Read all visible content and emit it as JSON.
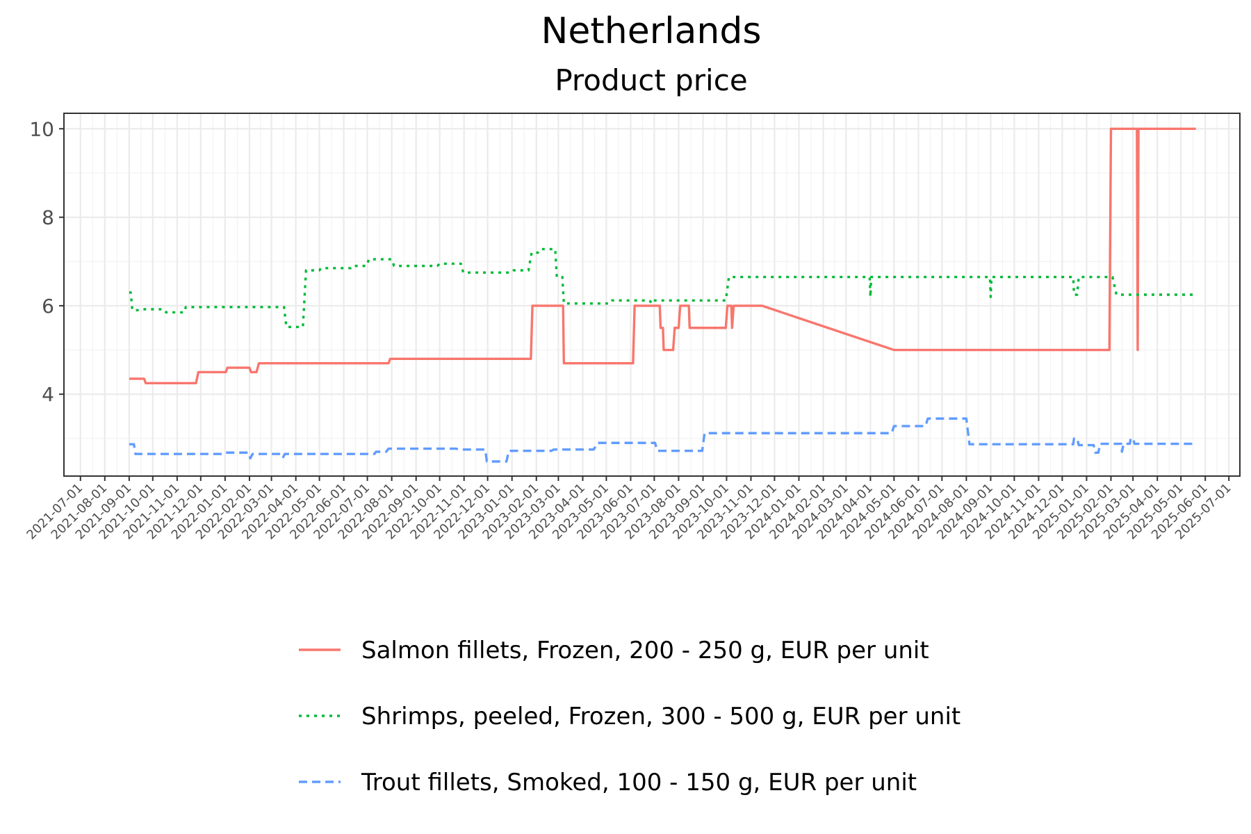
{
  "chart_data": {
    "type": "line",
    "title": "Netherlands",
    "subtitle": "Product price",
    "xlabel": "",
    "ylabel": "",
    "x_axis": "date",
    "xlim": [
      "2021-06-10",
      "2025-07-15"
    ],
    "ylim": [
      2.15,
      10.35
    ],
    "y_ticks": [
      4,
      6,
      8,
      10
    ],
    "y_tick_labels": [
      "4",
      "6",
      "8",
      "10"
    ],
    "x_ticks": [
      "2021-07-01",
      "2021-08-01",
      "2021-09-01",
      "2021-10-01",
      "2021-11-01",
      "2021-12-01",
      "2022-01-01",
      "2022-02-01",
      "2022-03-01",
      "2022-04-01",
      "2022-05-01",
      "2022-06-01",
      "2022-07-01",
      "2022-08-01",
      "2022-09-01",
      "2022-10-01",
      "2022-11-01",
      "2022-12-01",
      "2023-01-01",
      "2023-02-01",
      "2023-03-01",
      "2023-04-01",
      "2023-05-01",
      "2023-06-01",
      "2023-07-01",
      "2023-08-01",
      "2023-09-01",
      "2023-10-01",
      "2023-11-01",
      "2023-12-01",
      "2024-01-01",
      "2024-02-01",
      "2024-03-01",
      "2024-04-01",
      "2024-05-01",
      "2024-06-01",
      "2024-07-01",
      "2024-08-01",
      "2024-09-01",
      "2024-10-01",
      "2024-11-01",
      "2024-12-01",
      "2025-01-01",
      "2025-02-01",
      "2025-03-01",
      "2025-04-01",
      "2025-05-01",
      "2025-06-01",
      "2025-07-01"
    ],
    "grid": true,
    "legend_position": "bottom",
    "series": [
      {
        "name": "Salmon fillets, Frozen, 200 - 250 g, EUR per unit",
        "color": "#F8766D",
        "dash": "solid",
        "points": [
          [
            "2021-09-01",
            4.35
          ],
          [
            "2021-09-20",
            4.35
          ],
          [
            "2021-09-22",
            4.25
          ],
          [
            "2021-11-25",
            4.25
          ],
          [
            "2021-11-28",
            4.5
          ],
          [
            "2022-01-02",
            4.5
          ],
          [
            "2022-01-04",
            4.6
          ],
          [
            "2022-02-01",
            4.6
          ],
          [
            "2022-02-03",
            4.5
          ],
          [
            "2022-02-10",
            4.5
          ],
          [
            "2022-02-13",
            4.7
          ],
          [
            "2022-07-28",
            4.7
          ],
          [
            "2022-07-30",
            4.8
          ],
          [
            "2023-01-25",
            4.8
          ],
          [
            "2023-01-27",
            6.0
          ],
          [
            "2023-03-07",
            6.0
          ],
          [
            "2023-03-08",
            4.7
          ],
          [
            "2023-06-04",
            4.7
          ],
          [
            "2023-06-06",
            6.0
          ],
          [
            "2023-07-08",
            6.0
          ],
          [
            "2023-07-09",
            5.5
          ],
          [
            "2023-07-12",
            5.5
          ],
          [
            "2023-07-13",
            5.0
          ],
          [
            "2023-07-25",
            5.0
          ],
          [
            "2023-07-27",
            5.5
          ],
          [
            "2023-08-01",
            5.5
          ],
          [
            "2023-08-03",
            6.0
          ],
          [
            "2023-08-14",
            6.0
          ],
          [
            "2023-08-15",
            5.5
          ],
          [
            "2023-09-30",
            5.5
          ],
          [
            "2023-10-02",
            6.0
          ],
          [
            "2023-10-07",
            6.0
          ],
          [
            "2023-10-08",
            5.5
          ],
          [
            "2023-10-10",
            6.0
          ],
          [
            "2023-11-15",
            6.0
          ],
          [
            "2024-05-01",
            5.0
          ],
          [
            "2025-01-30",
            5.0
          ],
          [
            "2025-02-01",
            10.0
          ],
          [
            "2025-03-06",
            10.0
          ],
          [
            "2025-03-07",
            5.0
          ],
          [
            "2025-03-08",
            10.0
          ],
          [
            "2025-05-20",
            10.0
          ]
        ]
      },
      {
        "name": "Shrimps, peeled, Frozen, 300 - 500 g, EUR per unit",
        "color": "#00BA38",
        "dash": "dotted",
        "points": [
          [
            "2021-09-01",
            6.3
          ],
          [
            "2021-09-03",
            6.3
          ],
          [
            "2021-09-05",
            5.9
          ],
          [
            "2021-09-15",
            5.9
          ],
          [
            "2021-09-18",
            5.92
          ],
          [
            "2021-10-15",
            5.92
          ],
          [
            "2021-10-18",
            5.85
          ],
          [
            "2021-11-10",
            5.85
          ],
          [
            "2021-11-12",
            5.97
          ],
          [
            "2022-03-17",
            5.97
          ],
          [
            "2022-03-20",
            5.52
          ],
          [
            "2022-04-10",
            5.52
          ],
          [
            "2022-04-14",
            6.8
          ],
          [
            "2022-05-01",
            6.8
          ],
          [
            "2022-05-03",
            6.85
          ],
          [
            "2022-06-10",
            6.85
          ],
          [
            "2022-06-12",
            6.9
          ],
          [
            "2022-06-30",
            6.9
          ],
          [
            "2022-07-03",
            7.05
          ],
          [
            "2022-08-01",
            7.05
          ],
          [
            "2022-08-04",
            6.9
          ],
          [
            "2022-09-28",
            6.9
          ],
          [
            "2022-10-01",
            6.95
          ],
          [
            "2022-10-28",
            6.95
          ],
          [
            "2022-10-31",
            6.75
          ],
          [
            "2022-12-31",
            6.75
          ],
          [
            "2023-01-03",
            6.8
          ],
          [
            "2023-01-22",
            6.8
          ],
          [
            "2023-01-26",
            7.2
          ],
          [
            "2023-02-03",
            7.2
          ],
          [
            "2023-02-06",
            7.28
          ],
          [
            "2023-02-25",
            7.28
          ],
          [
            "2023-02-27",
            6.65
          ],
          [
            "2023-03-06",
            6.65
          ],
          [
            "2023-03-08",
            6.05
          ],
          [
            "2023-05-05",
            6.05
          ],
          [
            "2023-05-08",
            6.12
          ],
          [
            "2023-06-25",
            6.12
          ],
          [
            "2023-06-28",
            6.05
          ],
          [
            "2023-06-30",
            6.12
          ],
          [
            "2023-09-30",
            6.12
          ],
          [
            "2023-10-04",
            6.65
          ],
          [
            "2024-03-31",
            6.65
          ],
          [
            "2024-04-01",
            6.2
          ],
          [
            "2024-04-02",
            6.65
          ],
          [
            "2024-08-31",
            6.65
          ],
          [
            "2024-09-01",
            6.2
          ],
          [
            "2024-09-02",
            6.65
          ],
          [
            "2024-12-15",
            6.65
          ],
          [
            "2024-12-16",
            6.25
          ],
          [
            "2024-12-20",
            6.25
          ],
          [
            "2024-12-22",
            6.65
          ],
          [
            "2025-02-03",
            6.65
          ],
          [
            "2025-02-08",
            6.25
          ],
          [
            "2025-05-20",
            6.25
          ]
        ]
      },
      {
        "name": "Trout fillets, Smoked, 100 - 150 g, EUR per unit",
        "color": "#619CFF",
        "dash": "dashed",
        "points": [
          [
            "2021-09-01",
            2.87
          ],
          [
            "2021-09-07",
            2.87
          ],
          [
            "2021-09-09",
            2.65
          ],
          [
            "2021-12-31",
            2.65
          ],
          [
            "2022-01-02",
            2.68
          ],
          [
            "2022-01-31",
            2.68
          ],
          [
            "2022-02-02",
            2.55
          ],
          [
            "2022-02-05",
            2.65
          ],
          [
            "2022-03-15",
            2.65
          ],
          [
            "2022-03-16",
            2.58
          ],
          [
            "2022-03-18",
            2.65
          ],
          [
            "2022-07-10",
            2.65
          ],
          [
            "2022-07-12",
            2.7
          ],
          [
            "2022-07-25",
            2.7
          ],
          [
            "2022-07-28",
            2.77
          ],
          [
            "2022-10-22",
            2.77
          ],
          [
            "2022-10-25",
            2.75
          ],
          [
            "2022-11-28",
            2.75
          ],
          [
            "2022-11-30",
            2.48
          ],
          [
            "2022-12-25",
            2.48
          ],
          [
            "2022-12-28",
            2.72
          ],
          [
            "2023-02-20",
            2.72
          ],
          [
            "2023-02-23",
            2.75
          ],
          [
            "2023-04-15",
            2.75
          ],
          [
            "2023-04-20",
            2.9
          ],
          [
            "2023-07-02",
            2.9
          ],
          [
            "2023-07-05",
            2.72
          ],
          [
            "2023-08-31",
            2.72
          ],
          [
            "2023-09-03",
            3.12
          ],
          [
            "2024-04-28",
            3.12
          ],
          [
            "2024-05-01",
            3.28
          ],
          [
            "2024-06-10",
            3.28
          ],
          [
            "2024-06-13",
            3.45
          ],
          [
            "2024-08-01",
            3.45
          ],
          [
            "2024-08-05",
            2.87
          ],
          [
            "2024-12-15",
            2.87
          ],
          [
            "2024-12-16",
            3.0
          ],
          [
            "2024-12-20",
            3.0
          ],
          [
            "2024-12-22",
            2.85
          ],
          [
            "2025-01-10",
            2.85
          ],
          [
            "2025-01-12",
            2.68
          ],
          [
            "2025-01-16",
            2.68
          ],
          [
            "2025-01-18",
            2.88
          ],
          [
            "2025-02-14",
            2.88
          ],
          [
            "2025-02-15",
            2.7
          ],
          [
            "2025-02-17",
            2.88
          ],
          [
            "2025-02-25",
            2.88
          ],
          [
            "2025-02-26",
            3.0
          ],
          [
            "2025-03-01",
            3.0
          ],
          [
            "2025-03-03",
            2.88
          ],
          [
            "2025-05-20",
            2.88
          ]
        ]
      }
    ]
  }
}
